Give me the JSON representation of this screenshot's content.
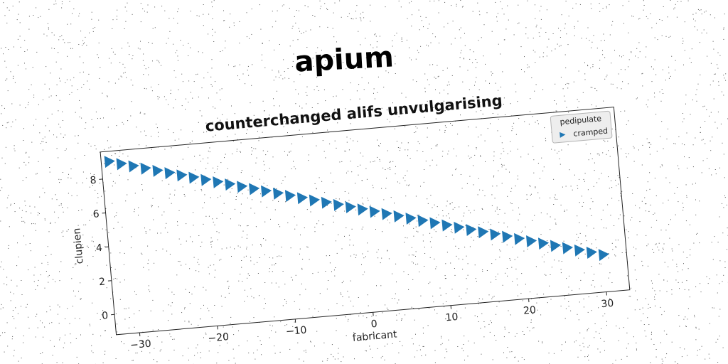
{
  "chart_data": {
    "type": "scatter",
    "suptitle": "apium",
    "title": "counterchanged alifs unvulgarising",
    "xlabel": "fabricant",
    "ylabel": "clupien",
    "xlim": [
      -33,
      33
    ],
    "ylim": [
      -1.2,
      9.6
    ],
    "xticks": [
      -30,
      -20,
      -10,
      0,
      10,
      20,
      30
    ],
    "yticks": [
      0,
      2,
      4,
      6,
      8
    ],
    "grid": false,
    "legend": {
      "title": "pedipulate",
      "location": "top-right",
      "entries": [
        "cramped"
      ]
    },
    "series": [
      {
        "name": "cramped",
        "marker": "triangle-right",
        "color": "#1f77b4",
        "x_start": -32,
        "x_end": 30,
        "x_step": 1.5,
        "y_start": 9.0,
        "y_end": 1.0
      }
    ]
  }
}
